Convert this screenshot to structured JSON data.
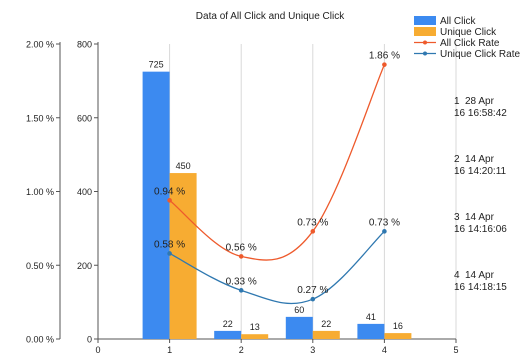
{
  "chart_data": {
    "type": "bar",
    "title": "Data of All Click and Unique Click",
    "x": [
      1,
      2,
      3,
      4
    ],
    "xlim": [
      0,
      5
    ],
    "x_ticks": [
      "0",
      "1",
      "2",
      "3",
      "4",
      "5"
    ],
    "ylim": [
      0,
      800
    ],
    "y_ticks": [
      "0",
      "200",
      "400",
      "600",
      "800"
    ],
    "y2lim": [
      0,
      2.0
    ],
    "y2_ticks": [
      "0.00 %",
      "0.50 %",
      "1.00 %",
      "1.50 %",
      "2.00 %"
    ],
    "grid": "vertical",
    "legend_position": "top-right",
    "series": [
      {
        "name": "All Click",
        "kind": "bar",
        "axis": "left",
        "color": "#3C8AF0",
        "values": [
          725,
          22,
          60,
          41
        ],
        "labels": [
          "725",
          "22",
          "60",
          "41"
        ]
      },
      {
        "name": "Unique Click",
        "kind": "bar",
        "axis": "left",
        "color": "#F7AC32",
        "values": [
          450,
          13,
          22,
          16
        ],
        "labels": [
          "450",
          "13",
          "22",
          "16"
        ]
      },
      {
        "name": "All Click Rate",
        "kind": "line",
        "axis": "right",
        "color": "#EE5A2C",
        "values": [
          0.94,
          0.56,
          0.73,
          1.86
        ],
        "labels": [
          "0.94 %",
          "0.56 %",
          "0.73 %",
          "1.86 %"
        ]
      },
      {
        "name": "Unique Click Rate",
        "kind": "line",
        "axis": "right",
        "color": "#2F78B0",
        "values": [
          0.58,
          0.33,
          0.27,
          0.73
        ],
        "labels": [
          "0.58 %",
          "0.33 %",
          "0.27 %",
          "0.73 %"
        ]
      }
    ],
    "x_annotations": [
      {
        "index": "1",
        "line1": "28 Apr",
        "line2": "16 16:58:42"
      },
      {
        "index": "2",
        "line1": "14 Apr",
        "line2": "16 14:20:11"
      },
      {
        "index": "3",
        "line1": "14 Apr",
        "line2": "16 14:16:06"
      },
      {
        "index": "4",
        "line1": "14 Apr",
        "line2": "16 14:18:15"
      }
    ]
  }
}
